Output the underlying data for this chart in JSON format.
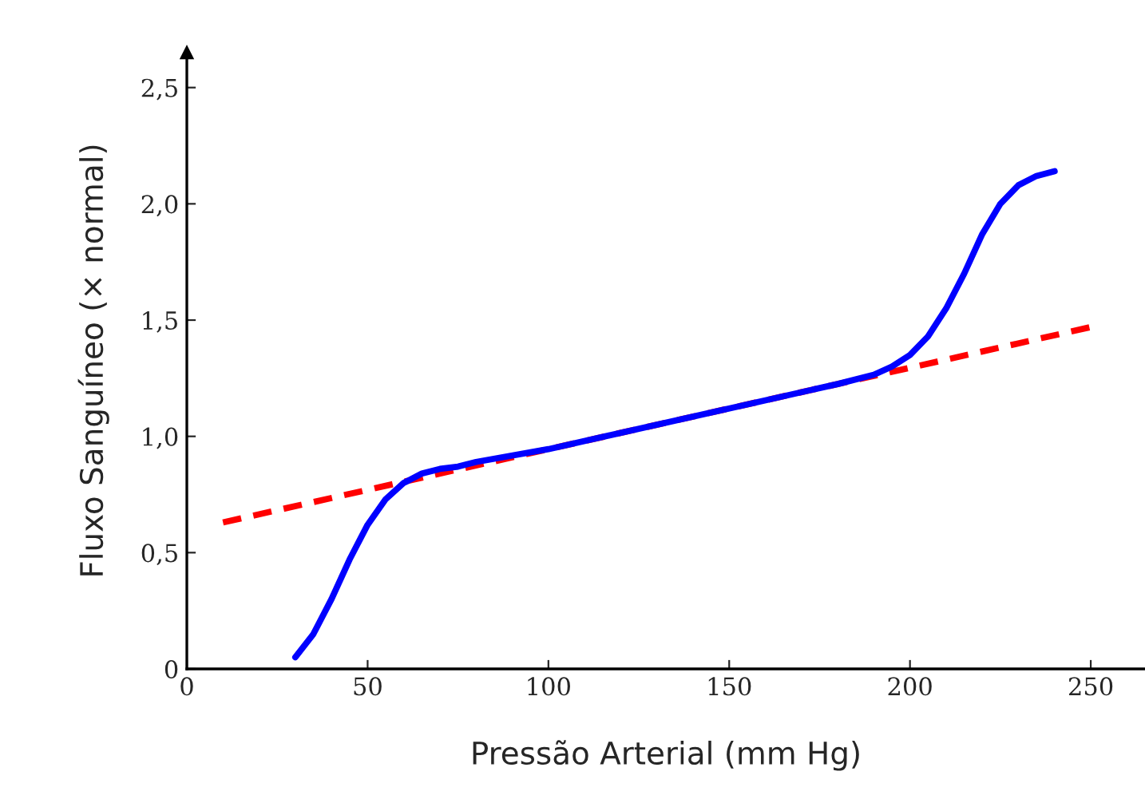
{
  "chart_data": {
    "type": "line",
    "xlabel": "Pressão Arterial (mm Hg)",
    "ylabel": "Fluxo Sanguíneo (× normal)",
    "xlim": [
      0,
      265
    ],
    "ylim": [
      0,
      2.65
    ],
    "xticks": [
      0,
      50,
      100,
      150,
      200,
      250
    ],
    "yticks": [
      0,
      {
        "value": 0.5,
        "label": "0,5"
      },
      {
        "value": 1.0,
        "label": "1,0"
      },
      {
        "value": 1.5,
        "label": "1,5"
      },
      {
        "value": 2.0,
        "label": "2,0"
      },
      {
        "value": 2.5,
        "label": "2,5"
      }
    ],
    "grid": false,
    "legend": false,
    "series": [
      {
        "color": "#ff0000",
        "line_style": "dashed",
        "x": [
          10,
          250
        ],
        "values": [
          0.63,
          1.47
        ]
      },
      {
        "color": "#0000ff",
        "line_style": "solid",
        "x": [
          30,
          35,
          40,
          45,
          50,
          55,
          60,
          65,
          70,
          75,
          80,
          100,
          150,
          180,
          190,
          195,
          200,
          205,
          210,
          215,
          220,
          225,
          230,
          235,
          240
        ],
        "values": [
          0.05,
          0.15,
          0.3,
          0.47,
          0.62,
          0.73,
          0.8,
          0.84,
          0.86,
          0.87,
          0.89,
          0.945,
          1.12,
          1.225,
          1.265,
          1.3,
          1.35,
          1.43,
          1.55,
          1.7,
          1.87,
          2.0,
          2.08,
          2.12,
          2.14
        ]
      }
    ]
  }
}
